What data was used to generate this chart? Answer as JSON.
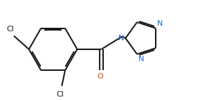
{
  "bg_color": "#ffffff",
  "line_color": "#1a1a1a",
  "N_color": "#1a68c8",
  "O_color": "#c04000",
  "line_width": 1.5,
  "dbo": 0.055,
  "figsize": [
    2.89,
    1.44
  ],
  "dpi": 100,
  "xlim": [
    0.0,
    5.8
  ],
  "ylim": [
    0.3,
    3.2
  ]
}
